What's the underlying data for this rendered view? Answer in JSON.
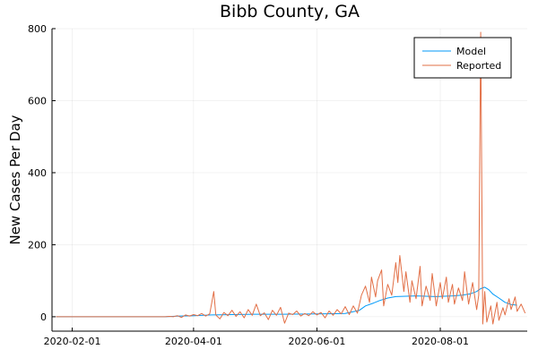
{
  "chart_data": {
    "type": "line",
    "title": "Bibb County, GA",
    "xlabel": "",
    "ylabel": "New Cases Per Day",
    "x_axis": {
      "kind": "date",
      "range": [
        "2020-01-22",
        "2020-09-13"
      ],
      "ticks": [
        "2020-02-01",
        "2020-04-01",
        "2020-06-01",
        "2020-08-01"
      ]
    },
    "y_axis": {
      "range": [
        -40,
        800
      ],
      "ticks": [
        0,
        200,
        400,
        600,
        800
      ]
    },
    "grid": true,
    "legend_position": "top-right",
    "series": [
      {
        "name": "Model",
        "color": "#009af9",
        "points": [
          [
            "2020-01-24",
            0
          ],
          [
            "2020-03-18",
            0
          ],
          [
            "2020-03-25",
            2
          ],
          [
            "2020-04-01",
            3
          ],
          [
            "2020-04-10",
            5
          ],
          [
            "2020-04-20",
            6
          ],
          [
            "2020-05-01",
            7
          ],
          [
            "2020-05-15",
            7
          ],
          [
            "2020-06-01",
            8
          ],
          [
            "2020-06-15",
            9
          ],
          [
            "2020-06-22",
            18
          ],
          [
            "2020-06-25",
            30
          ],
          [
            "2020-06-29",
            38
          ],
          [
            "2020-07-02",
            45
          ],
          [
            "2020-07-06",
            52
          ],
          [
            "2020-07-10",
            56
          ],
          [
            "2020-07-15",
            57
          ],
          [
            "2020-07-20",
            58
          ],
          [
            "2020-07-25",
            57
          ],
          [
            "2020-07-30",
            56
          ],
          [
            "2020-08-03",
            57
          ],
          [
            "2020-08-07",
            58
          ],
          [
            "2020-08-12",
            60
          ],
          [
            "2020-08-16",
            64
          ],
          [
            "2020-08-19",
            70
          ],
          [
            "2020-08-21",
            78
          ],
          [
            "2020-08-23",
            82
          ],
          [
            "2020-08-25",
            75
          ],
          [
            "2020-08-27",
            63
          ],
          [
            "2020-08-30",
            52
          ],
          [
            "2020-09-02",
            40
          ],
          [
            "2020-09-05",
            34
          ],
          [
            "2020-09-08",
            32
          ]
        ]
      },
      {
        "name": "Reported",
        "color": "#e26f46",
        "points": [
          [
            "2020-01-24",
            0
          ],
          [
            "2020-03-18",
            0
          ],
          [
            "2020-03-20",
            1
          ],
          [
            "2020-03-22",
            0
          ],
          [
            "2020-03-24",
            3
          ],
          [
            "2020-03-26",
            -2
          ],
          [
            "2020-03-28",
            5
          ],
          [
            "2020-03-30",
            2
          ],
          [
            "2020-04-01",
            6
          ],
          [
            "2020-04-03",
            3
          ],
          [
            "2020-04-05",
            9
          ],
          [
            "2020-04-07",
            2
          ],
          [
            "2020-04-09",
            8
          ],
          [
            "2020-04-11",
            70
          ],
          [
            "2020-04-12",
            5
          ],
          [
            "2020-04-14",
            -6
          ],
          [
            "2020-04-16",
            12
          ],
          [
            "2020-04-18",
            3
          ],
          [
            "2020-04-20",
            18
          ],
          [
            "2020-04-22",
            1
          ],
          [
            "2020-04-24",
            14
          ],
          [
            "2020-04-26",
            -3
          ],
          [
            "2020-04-28",
            20
          ],
          [
            "2020-04-30",
            4
          ],
          [
            "2020-05-02",
            35
          ],
          [
            "2020-05-04",
            3
          ],
          [
            "2020-05-06",
            11
          ],
          [
            "2020-05-08",
            -8
          ],
          [
            "2020-05-10",
            18
          ],
          [
            "2020-05-12",
            4
          ],
          [
            "2020-05-14",
            26
          ],
          [
            "2020-05-16",
            -18
          ],
          [
            "2020-05-18",
            10
          ],
          [
            "2020-05-20",
            6
          ],
          [
            "2020-05-22",
            16
          ],
          [
            "2020-05-24",
            2
          ],
          [
            "2020-05-26",
            9
          ],
          [
            "2020-05-28",
            3
          ],
          [
            "2020-05-30",
            14
          ],
          [
            "2020-06-01",
            5
          ],
          [
            "2020-06-03",
            12
          ],
          [
            "2020-06-05",
            -3
          ],
          [
            "2020-06-07",
            16
          ],
          [
            "2020-06-09",
            4
          ],
          [
            "2020-06-11",
            20
          ],
          [
            "2020-06-13",
            8
          ],
          [
            "2020-06-15",
            28
          ],
          [
            "2020-06-17",
            6
          ],
          [
            "2020-06-19",
            30
          ],
          [
            "2020-06-21",
            10
          ],
          [
            "2020-06-23",
            60
          ],
          [
            "2020-06-25",
            85
          ],
          [
            "2020-06-27",
            40
          ],
          [
            "2020-06-28",
            110
          ],
          [
            "2020-06-30",
            55
          ],
          [
            "2020-07-01",
            100
          ],
          [
            "2020-07-03",
            130
          ],
          [
            "2020-07-04",
            30
          ],
          [
            "2020-07-06",
            90
          ],
          [
            "2020-07-08",
            60
          ],
          [
            "2020-07-10",
            150
          ],
          [
            "2020-07-11",
            95
          ],
          [
            "2020-07-12",
            170
          ],
          [
            "2020-07-14",
            70
          ],
          [
            "2020-07-15",
            125
          ],
          [
            "2020-07-17",
            40
          ],
          [
            "2020-07-18",
            100
          ],
          [
            "2020-07-20",
            50
          ],
          [
            "2020-07-22",
            140
          ],
          [
            "2020-07-23",
            30
          ],
          [
            "2020-07-25",
            85
          ],
          [
            "2020-07-27",
            45
          ],
          [
            "2020-07-28",
            120
          ],
          [
            "2020-07-30",
            30
          ],
          [
            "2020-08-01",
            95
          ],
          [
            "2020-08-02",
            50
          ],
          [
            "2020-08-04",
            110
          ],
          [
            "2020-08-05",
            40
          ],
          [
            "2020-08-07",
            90
          ],
          [
            "2020-08-08",
            35
          ],
          [
            "2020-08-10",
            80
          ],
          [
            "2020-08-12",
            45
          ],
          [
            "2020-08-13",
            125
          ],
          [
            "2020-08-15",
            35
          ],
          [
            "2020-08-17",
            95
          ],
          [
            "2020-08-19",
            20
          ],
          [
            "2020-08-20",
            60
          ],
          [
            "2020-08-21",
            790
          ],
          [
            "2020-08-22",
            -20
          ],
          [
            "2020-08-23",
            70
          ],
          [
            "2020-08-24",
            -15
          ],
          [
            "2020-08-26",
            30
          ],
          [
            "2020-08-27",
            -20
          ],
          [
            "2020-08-29",
            40
          ],
          [
            "2020-08-30",
            -10
          ],
          [
            "2020-09-01",
            25
          ],
          [
            "2020-09-02",
            5
          ],
          [
            "2020-09-04",
            50
          ],
          [
            "2020-09-05",
            20
          ],
          [
            "2020-09-07",
            55
          ],
          [
            "2020-09-08",
            15
          ],
          [
            "2020-09-10",
            35
          ],
          [
            "2020-09-12",
            10
          ]
        ]
      }
    ]
  }
}
